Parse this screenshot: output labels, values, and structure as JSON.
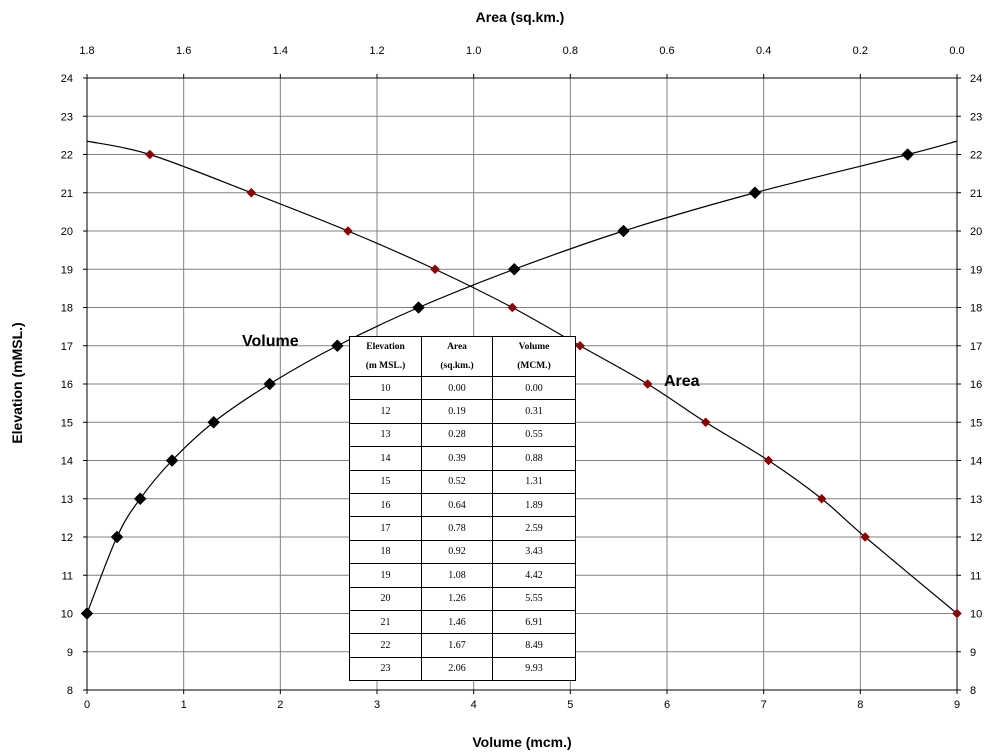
{
  "chart_data": {
    "type": "line",
    "xlabel_bottom": "Volume  (mcm.)",
    "xlabel_top": "Area  (sq.km.)",
    "ylabel": "Elevation (mMSL.)",
    "x_bottom_range": [
      0,
      9
    ],
    "x_top_range": [
      1.8,
      0.0
    ],
    "y_range": [
      8,
      24
    ],
    "x_bottom_ticks": [
      "0",
      "1",
      "2",
      "3",
      "4",
      "5",
      "6",
      "7",
      "8",
      "9"
    ],
    "x_top_ticks": [
      "1.8",
      "1.6",
      "1.4",
      "1.2",
      "1.0",
      "0.8",
      "0.6",
      "0.4",
      "0.2",
      "0.0"
    ],
    "y_ticks": [
      "8",
      "9",
      "10",
      "11",
      "12",
      "13",
      "14",
      "15",
      "16",
      "17",
      "18",
      "19",
      "20",
      "21",
      "22",
      "23",
      "24"
    ],
    "grid": true,
    "series": [
      {
        "name": "Volume",
        "axis": "bottom",
        "color": "#000000",
        "marker_color": "#000000",
        "points": [
          [
            0.0,
            10
          ],
          [
            0.31,
            12
          ],
          [
            0.55,
            13
          ],
          [
            0.88,
            14
          ],
          [
            1.31,
            15
          ],
          [
            1.89,
            16
          ],
          [
            2.59,
            17
          ],
          [
            3.43,
            18
          ],
          [
            4.42,
            19
          ],
          [
            5.55,
            20
          ],
          [
            6.91,
            21
          ],
          [
            8.49,
            22
          ]
        ],
        "curve_ends": [
          [
            9.0,
            22.35
          ]
        ]
      },
      {
        "name": "Area",
        "axis": "top",
        "color": "#000000",
        "marker_color": "#8B0000",
        "points": [
          [
            0.0,
            10
          ],
          [
            0.19,
            12
          ],
          [
            0.28,
            13
          ],
          [
            0.39,
            14
          ],
          [
            0.52,
            15
          ],
          [
            0.64,
            16
          ],
          [
            0.78,
            17
          ],
          [
            0.92,
            18
          ],
          [
            1.08,
            19
          ],
          [
            1.26,
            20
          ],
          [
            1.46,
            21
          ],
          [
            1.67,
            22
          ]
        ],
        "curve_ends": [
          [
            1.8,
            22.35
          ]
        ]
      }
    ],
    "table": {
      "headers": [
        [
          "Elevation",
          "(m MSL.)"
        ],
        [
          "Area",
          "(sq.km.)"
        ],
        [
          "Volume",
          "(MCM.)"
        ]
      ],
      "rows": [
        [
          "10",
          "0.00",
          "0.00"
        ],
        [
          "12",
          "0.19",
          "0.31"
        ],
        [
          "13",
          "0.28",
          "0.55"
        ],
        [
          "14",
          "0.39",
          "0.88"
        ],
        [
          "15",
          "0.52",
          "1.31"
        ],
        [
          "16",
          "0.64",
          "1.89"
        ],
        [
          "17",
          "0.78",
          "2.59"
        ],
        [
          "18",
          "0.92",
          "3.43"
        ],
        [
          "19",
          "1.08",
          "4.42"
        ],
        [
          "20",
          "1.26",
          "5.55"
        ],
        [
          "21",
          "1.46",
          "6.91"
        ],
        [
          "22",
          "1.67",
          "8.49"
        ],
        [
          "23",
          "2.06",
          "9.93"
        ]
      ]
    }
  }
}
